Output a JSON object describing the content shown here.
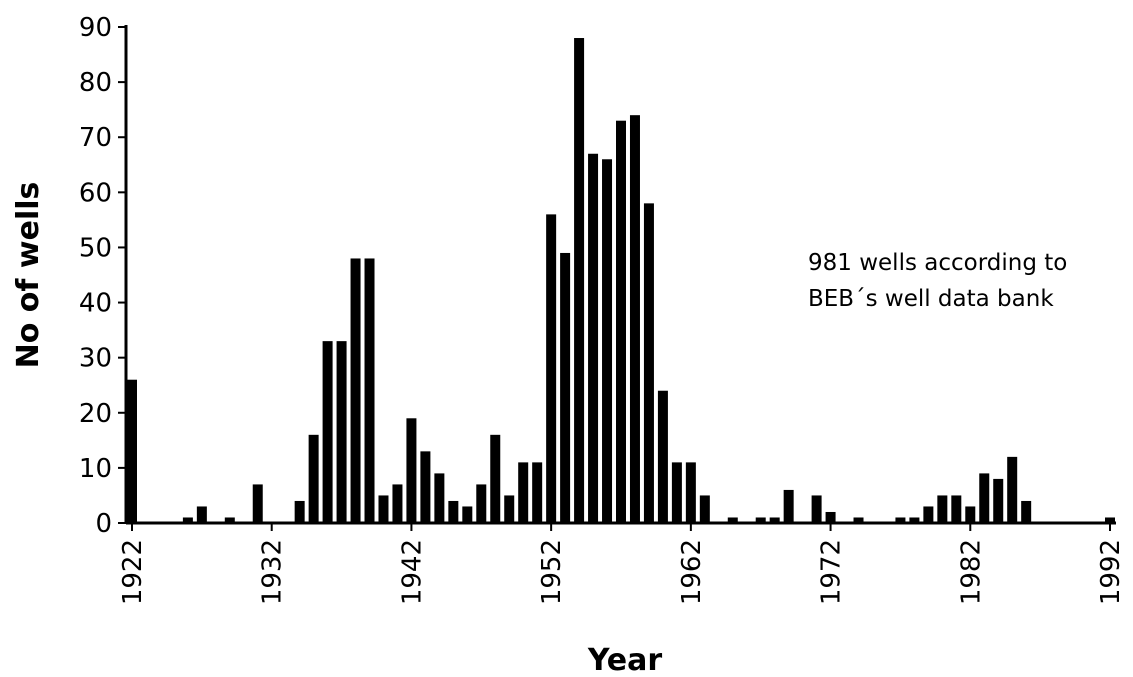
{
  "chart_data": {
    "type": "bar",
    "xlabel": "Year",
    "ylabel": "No of wells",
    "ylim": [
      0,
      90
    ],
    "xlim": [
      1922,
      1992
    ],
    "yticks": [
      0,
      10,
      20,
      30,
      40,
      50,
      60,
      70,
      80,
      90
    ],
    "xticks": [
      "1922",
      "1932",
      "1942",
      "1952",
      "1962",
      "1972",
      "1982",
      "1992"
    ],
    "annotation": [
      "981 wells according to",
      "BEB´s well data bank"
    ],
    "bar_color": "#000000",
    "grid": false,
    "years": [
      1922,
      1923,
      1924,
      1925,
      1926,
      1927,
      1928,
      1929,
      1930,
      1931,
      1932,
      1933,
      1934,
      1935,
      1936,
      1937,
      1938,
      1939,
      1940,
      1941,
      1942,
      1943,
      1944,
      1945,
      1946,
      1947,
      1948,
      1949,
      1950,
      1951,
      1952,
      1953,
      1954,
      1955,
      1956,
      1957,
      1958,
      1959,
      1960,
      1961,
      1962,
      1963,
      1964,
      1965,
      1966,
      1967,
      1968,
      1969,
      1970,
      1971,
      1972,
      1973,
      1974,
      1975,
      1976,
      1977,
      1978,
      1979,
      1980,
      1981,
      1982,
      1983,
      1984,
      1985,
      1986,
      1987,
      1988,
      1989,
      1990,
      1991,
      1992
    ],
    "values": [
      26,
      0,
      0,
      0,
      1,
      3,
      0,
      1,
      0,
      7,
      0,
      0,
      4,
      16,
      33,
      33,
      48,
      48,
      5,
      7,
      19,
      13,
      9,
      4,
      3,
      7,
      16,
      5,
      11,
      11,
      56,
      49,
      88,
      67,
      66,
      73,
      74,
      58,
      24,
      11,
      11,
      5,
      0,
      1,
      0,
      1,
      1,
      6,
      0,
      5,
      2,
      0,
      1,
      0,
      0,
      1,
      1,
      3,
      5,
      5,
      3,
      9,
      8,
      12,
      4,
      0,
      0,
      0,
      0,
      0,
      1
    ]
  }
}
